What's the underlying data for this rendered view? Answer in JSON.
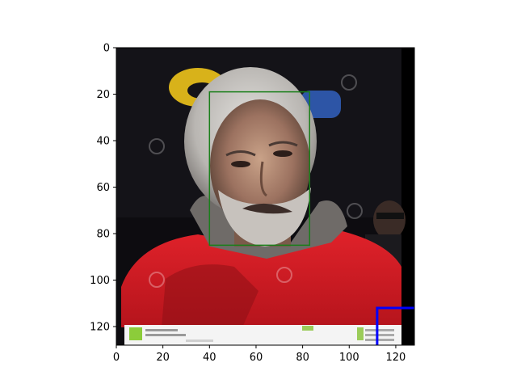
{
  "chart_data": {
    "type": "image",
    "title": "",
    "xlabel": "",
    "ylabel": "",
    "xlim": [
      0,
      128
    ],
    "ylim": [
      128,
      0
    ],
    "y_inverted": true,
    "grid": false,
    "x_ticks": [
      0,
      20,
      40,
      60,
      80,
      100,
      120
    ],
    "y_ticks": [
      0,
      20,
      40,
      60,
      80,
      100,
      120
    ],
    "image_description": "photo-of-grey-haired-man-in-red-jacket",
    "face_box": {
      "x0": 40,
      "y0": 19,
      "x1": 83,
      "y1": 85,
      "color": "#1a7f1a"
    },
    "blue_box": {
      "x0": 112,
      "y0": 112,
      "x1": 128,
      "y1": 128,
      "color": "#0000ff"
    }
  }
}
